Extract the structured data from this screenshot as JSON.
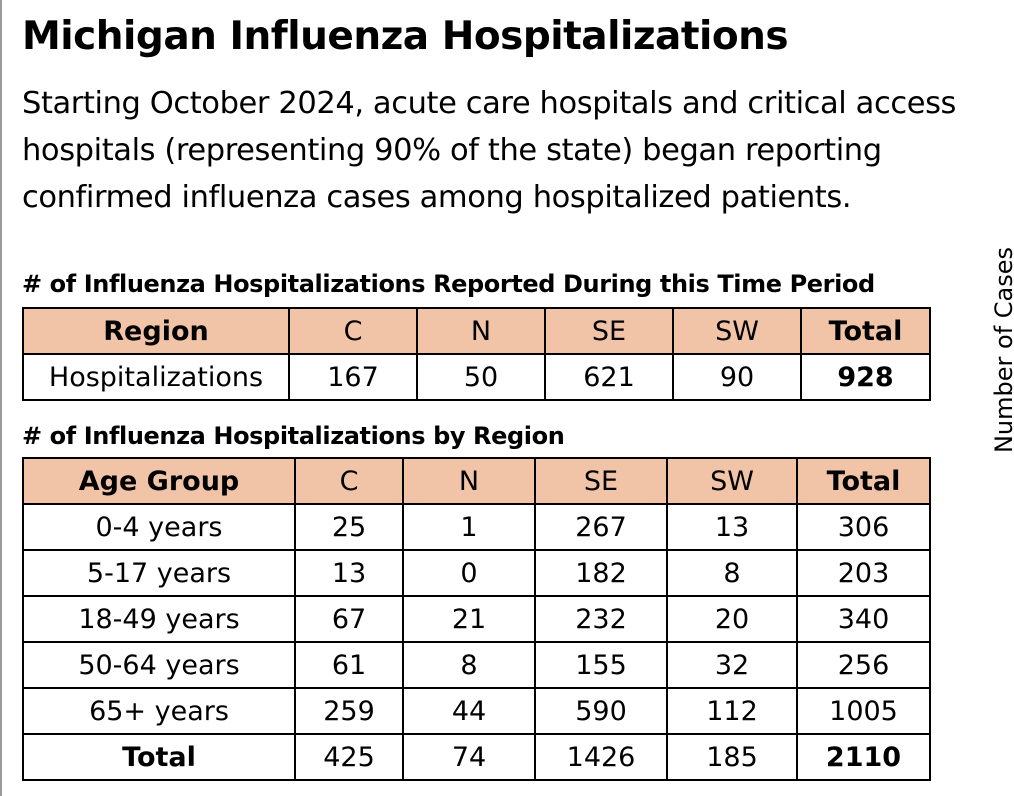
{
  "title": "Michigan Influenza Hospitalizations",
  "intro_lines": [
    "Starting October 2024, acute care hospitals and critical access",
    "hospitals (representing 90% of the state) began reporting",
    "confirmed influenza cases among hospitalized patients."
  ],
  "side_label": "Number of Cases",
  "colors": {
    "header_fill": "#f1c4a7",
    "border": "#000000"
  },
  "table1": {
    "caption": "# of Influenza Hospitalizations Reported During this Time Period",
    "headers": [
      "Region",
      "C",
      "N",
      "SE",
      "SW",
      "Total"
    ],
    "rows": [
      [
        "Hospitalizations",
        "167",
        "50",
        "621",
        "90",
        "928"
      ]
    ]
  },
  "table2": {
    "caption": "# of Influenza Hospitalizations by Region",
    "headers": [
      "Age Group",
      "C",
      "N",
      "SE",
      "SW",
      "Total"
    ],
    "rows": [
      [
        "0-4 years",
        "25",
        "1",
        "267",
        "13",
        "306"
      ],
      [
        "5-17 years",
        "13",
        "0",
        "182",
        "8",
        "203"
      ],
      [
        "18-49 years",
        "67",
        "21",
        "232",
        "20",
        "340"
      ],
      [
        "50-64 years",
        "61",
        "8",
        "155",
        "32",
        "256"
      ],
      [
        "65+ years",
        "259",
        "44",
        "590",
        "112",
        "1005"
      ],
      [
        "Total",
        "425",
        "74",
        "1426",
        "185",
        "2110"
      ]
    ]
  }
}
